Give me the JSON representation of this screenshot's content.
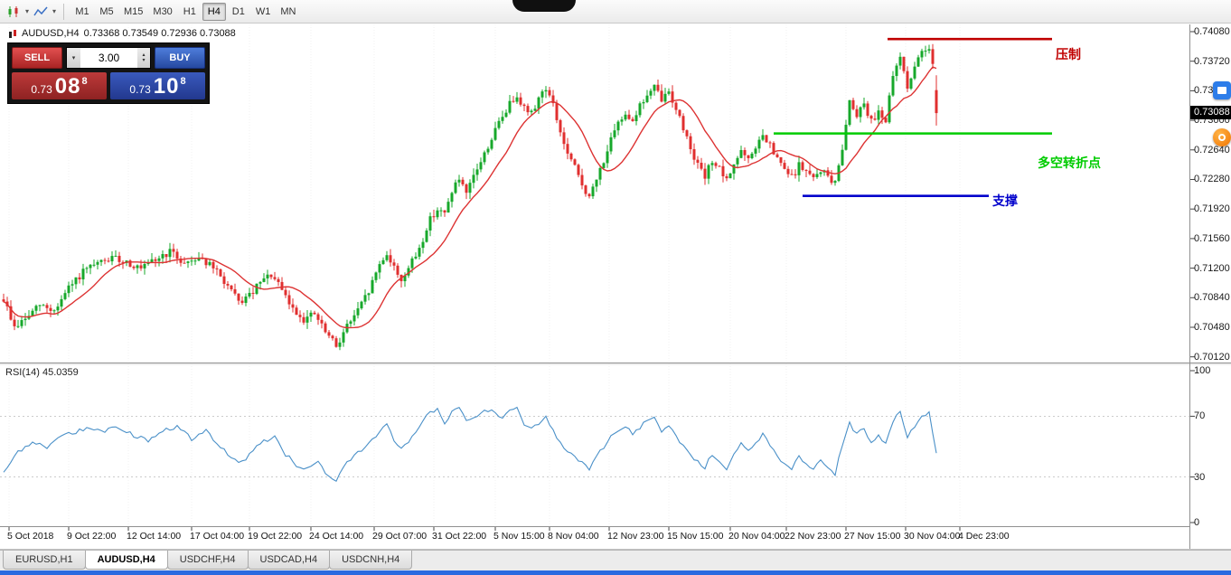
{
  "toolbar": {
    "timeframes": [
      "M1",
      "M5",
      "M15",
      "M30",
      "H1",
      "H4",
      "D1",
      "W1",
      "MN"
    ],
    "active_timeframe": "H4"
  },
  "symbol_header": {
    "symbol": "AUDUSD,H4",
    "ohlc": "0.73368 0.73549 0.72936 0.73088"
  },
  "trade_panel": {
    "sell_label": "SELL",
    "buy_label": "BUY",
    "volume": "3.00",
    "bid": {
      "main": "0.73",
      "pips": "08",
      "pipette": "8"
    },
    "ask": {
      "main": "0.73",
      "pips": "10",
      "pipette": "8"
    }
  },
  "price_badge": "0.73088",
  "rsi_label": "RSI(14) 45.0359",
  "tabs": {
    "items": [
      "EURUSD,H1",
      "AUDUSD,H4",
      "USDCHF,H4",
      "USDCAD,H4",
      "USDCNH,H4"
    ],
    "active": "AUDUSD,H4"
  },
  "chart_data": {
    "type": "candlestick",
    "symbol": "AUDUSD",
    "timeframe": "H4",
    "ylim": [
      0.7012,
      0.7408
    ],
    "price_axis_ticks": [
      "0.74080",
      "0.73720",
      "0.73360",
      "0.73000",
      "0.72640",
      "0.72280",
      "0.71920",
      "0.71560",
      "0.71200",
      "0.70840",
      "0.70480",
      "0.70120"
    ],
    "time_axis_ticks": [
      {
        "label": "5 Oct 2018",
        "i": 1.5
      },
      {
        "label": "9 Oct 22:00",
        "i": 18
      },
      {
        "label": "12 Oct 14:00",
        "i": 34.5
      },
      {
        "label": "17 Oct 04:00",
        "i": 52
      },
      {
        "label": "19 Oct 22:00",
        "i": 68
      },
      {
        "label": "24 Oct 14:00",
        "i": 85
      },
      {
        "label": "29 Oct 07:00",
        "i": 102.5
      },
      {
        "label": "31 Oct 22:00",
        "i": 119
      },
      {
        "label": "5 Nov 15:00",
        "i": 136
      },
      {
        "label": "8 Nov 04:00",
        "i": 151
      },
      {
        "label": "12 Nov 23:00",
        "i": 167.5
      },
      {
        "label": "15 Nov 15:00",
        "i": 184
      },
      {
        "label": "20 Nov 04:00",
        "i": 201
      },
      {
        "label": "22 Nov 23:00",
        "i": 216.5
      },
      {
        "label": "27 Nov 15:00",
        "i": 233
      },
      {
        "label": "30 Nov 04:00",
        "i": 249.5
      },
      {
        "label": "4 Dec 23:00",
        "i": 264.5
      }
    ],
    "candle_count": 259,
    "candle_closes": [
      [
        0,
        0.7082
      ],
      [
        3,
        0.7048
      ],
      [
        6,
        0.7058
      ],
      [
        10,
        0.7075
      ],
      [
        14,
        0.7068
      ],
      [
        18,
        0.7095
      ],
      [
        22,
        0.7115
      ],
      [
        26,
        0.7125
      ],
      [
        30,
        0.7132
      ],
      [
        34,
        0.7128
      ],
      [
        38,
        0.7118
      ],
      [
        42,
        0.713
      ],
      [
        46,
        0.714
      ],
      [
        50,
        0.7126
      ],
      [
        54,
        0.7134
      ],
      [
        58,
        0.712
      ],
      [
        62,
        0.7098
      ],
      [
        65,
        0.7078
      ],
      [
        68,
        0.7086
      ],
      [
        71,
        0.7102
      ],
      [
        74,
        0.7112
      ],
      [
        77,
        0.7092
      ],
      [
        80,
        0.707
      ],
      [
        83,
        0.7058
      ],
      [
        86,
        0.7064
      ],
      [
        89,
        0.7042
      ],
      [
        92,
        0.7025
      ],
      [
        95,
        0.705
      ],
      [
        98,
        0.7068
      ],
      [
        101,
        0.7092
      ],
      [
        104,
        0.7125
      ],
      [
        106,
        0.7138
      ],
      [
        108,
        0.712
      ],
      [
        110,
        0.7106
      ],
      [
        112,
        0.712
      ],
      [
        114,
        0.7135
      ],
      [
        116,
        0.7155
      ],
      [
        118,
        0.718
      ],
      [
        120,
        0.7192
      ],
      [
        122,
        0.7185
      ],
      [
        124,
        0.7215
      ],
      [
        126,
        0.7228
      ],
      [
        128,
        0.7208
      ],
      [
        130,
        0.7232
      ],
      [
        132,
        0.725
      ],
      [
        134,
        0.7268
      ],
      [
        136,
        0.7288
      ],
      [
        138,
        0.7305
      ],
      [
        140,
        0.732
      ],
      [
        142,
        0.7332
      ],
      [
        144,
        0.7315
      ],
      [
        146,
        0.7308
      ],
      [
        148,
        0.7328
      ],
      [
        150,
        0.734
      ],
      [
        152,
        0.7318
      ],
      [
        154,
        0.7285
      ],
      [
        156,
        0.7258
      ],
      [
        158,
        0.7242
      ],
      [
        160,
        0.7222
      ],
      [
        162,
        0.7205
      ],
      [
        164,
        0.7228
      ],
      [
        166,
        0.7252
      ],
      [
        168,
        0.7275
      ],
      [
        170,
        0.7295
      ],
      [
        172,
        0.731
      ],
      [
        174,
        0.73
      ],
      [
        176,
        0.7318
      ],
      [
        178,
        0.733
      ],
      [
        180,
        0.734
      ],
      [
        182,
        0.7325
      ],
      [
        184,
        0.7335
      ],
      [
        186,
        0.7315
      ],
      [
        188,
        0.729
      ],
      [
        190,
        0.7268
      ],
      [
        192,
        0.7245
      ],
      [
        194,
        0.723
      ],
      [
        196,
        0.7252
      ],
      [
        198,
        0.724
      ],
      [
        200,
        0.7225
      ],
      [
        202,
        0.7248
      ],
      [
        204,
        0.7262
      ],
      [
        206,
        0.725
      ],
      [
        208,
        0.7268
      ],
      [
        210,
        0.728
      ],
      [
        212,
        0.7268
      ],
      [
        214,
        0.7252
      ],
      [
        216,
        0.724
      ],
      [
        218,
        0.723
      ],
      [
        220,
        0.7245
      ],
      [
        222,
        0.7238
      ],
      [
        224,
        0.7228
      ],
      [
        226,
        0.724
      ],
      [
        228,
        0.7232
      ],
      [
        230,
        0.7222
      ],
      [
        232,
        0.7268
      ],
      [
        233,
        0.7295
      ],
      [
        234,
        0.7325
      ],
      [
        236,
        0.7308
      ],
      [
        238,
        0.7322
      ],
      [
        240,
        0.7298
      ],
      [
        242,
        0.7312
      ],
      [
        244,
        0.73
      ],
      [
        246,
        0.7352
      ],
      [
        248,
        0.7378
      ],
      [
        250,
        0.7342
      ],
      [
        252,
        0.7362
      ],
      [
        254,
        0.7386
      ],
      [
        256,
        0.739
      ],
      [
        257,
        0.737
      ],
      [
        258,
        0.7309
      ]
    ],
    "last_bar": {
      "open": 0.73368,
      "high": 0.73549,
      "low": 0.72936,
      "close": 0.73088
    },
    "ma": {
      "period": 13
    },
    "levels": [
      {
        "name": "resistance",
        "label": "压制",
        "price": 0.7399,
        "color": "#c00000",
        "i_from": 244.5,
        "i_to": 290
      },
      {
        "name": "pivot",
        "label": "多空转折点",
        "price": 0.7284,
        "color": "#00cc00",
        "i_from": 213,
        "i_to": 290
      },
      {
        "name": "support",
        "label": "支撑",
        "price": 0.7208,
        "color": "#0000cc",
        "i_from": 221,
        "i_to": 272.5
      }
    ],
    "rsi": {
      "period": 14,
      "current": 45.0359,
      "range": [
        0,
        100
      ],
      "axis_ticks": [
        "100",
        "70",
        "30",
        "0"
      ],
      "guides": [
        70,
        30
      ],
      "points": [
        [
          0,
          34
        ],
        [
          4,
          46
        ],
        [
          8,
          54
        ],
        [
          12,
          49
        ],
        [
          16,
          57
        ],
        [
          20,
          60
        ],
        [
          24,
          62
        ],
        [
          28,
          60
        ],
        [
          32,
          63
        ],
        [
          36,
          57
        ],
        [
          40,
          54
        ],
        [
          44,
          61
        ],
        [
          48,
          63
        ],
        [
          52,
          55
        ],
        [
          56,
          60
        ],
        [
          60,
          50
        ],
        [
          63,
          43
        ],
        [
          66,
          40
        ],
        [
          69,
          48
        ],
        [
          72,
          54
        ],
        [
          75,
          56
        ],
        [
          78,
          45
        ],
        [
          81,
          38
        ],
        [
          84,
          35
        ],
        [
          87,
          40
        ],
        [
          90,
          30
        ],
        [
          92,
          27
        ],
        [
          95,
          40
        ],
        [
          98,
          46
        ],
        [
          101,
          52
        ],
        [
          104,
          60
        ],
        [
          106,
          64
        ],
        [
          108,
          54
        ],
        [
          110,
          48
        ],
        [
          112,
          54
        ],
        [
          114,
          58
        ],
        [
          116,
          68
        ],
        [
          118,
          72
        ],
        [
          120,
          74
        ],
        [
          122,
          66
        ],
        [
          124,
          73
        ],
        [
          126,
          76
        ],
        [
          128,
          66
        ],
        [
          130,
          70
        ],
        [
          132,
          72
        ],
        [
          134,
          74
        ],
        [
          136,
          72
        ],
        [
          138,
          70
        ],
        [
          140,
          73
        ],
        [
          142,
          75
        ],
        [
          144,
          64
        ],
        [
          146,
          62
        ],
        [
          148,
          66
        ],
        [
          150,
          69
        ],
        [
          152,
          60
        ],
        [
          154,
          53
        ],
        [
          156,
          47
        ],
        [
          158,
          43
        ],
        [
          160,
          39
        ],
        [
          162,
          35
        ],
        [
          164,
          43
        ],
        [
          166,
          50
        ],
        [
          168,
          56
        ],
        [
          170,
          61
        ],
        [
          172,
          64
        ],
        [
          174,
          59
        ],
        [
          176,
          63
        ],
        [
          178,
          66
        ],
        [
          180,
          68
        ],
        [
          182,
          61
        ],
        [
          184,
          64
        ],
        [
          186,
          57
        ],
        [
          188,
          50
        ],
        [
          190,
          45
        ],
        [
          192,
          40
        ],
        [
          194,
          36
        ],
        [
          196,
          45
        ],
        [
          198,
          41
        ],
        [
          200,
          35
        ],
        [
          202,
          45
        ],
        [
          204,
          52
        ],
        [
          206,
          46
        ],
        [
          208,
          53
        ],
        [
          210,
          58
        ],
        [
          212,
          51
        ],
        [
          214,
          44
        ],
        [
          216,
          39
        ],
        [
          218,
          35
        ],
        [
          220,
          44
        ],
        [
          222,
          39
        ],
        [
          224,
          34
        ],
        [
          226,
          42
        ],
        [
          228,
          37
        ],
        [
          230,
          32
        ],
        [
          232,
          52
        ],
        [
          234,
          66
        ],
        [
          236,
          58
        ],
        [
          238,
          62
        ],
        [
          240,
          52
        ],
        [
          242,
          58
        ],
        [
          244,
          52
        ],
        [
          246,
          67
        ],
        [
          248,
          72
        ],
        [
          250,
          57
        ],
        [
          252,
          63
        ],
        [
          254,
          70
        ],
        [
          256,
          72
        ],
        [
          257,
          60
        ],
        [
          258,
          45
        ]
      ]
    },
    "colors": {
      "bull": "#17a82b",
      "bear": "#e02f2f",
      "ma": "#dd3333",
      "rsi_line": "#4a90c8"
    }
  }
}
